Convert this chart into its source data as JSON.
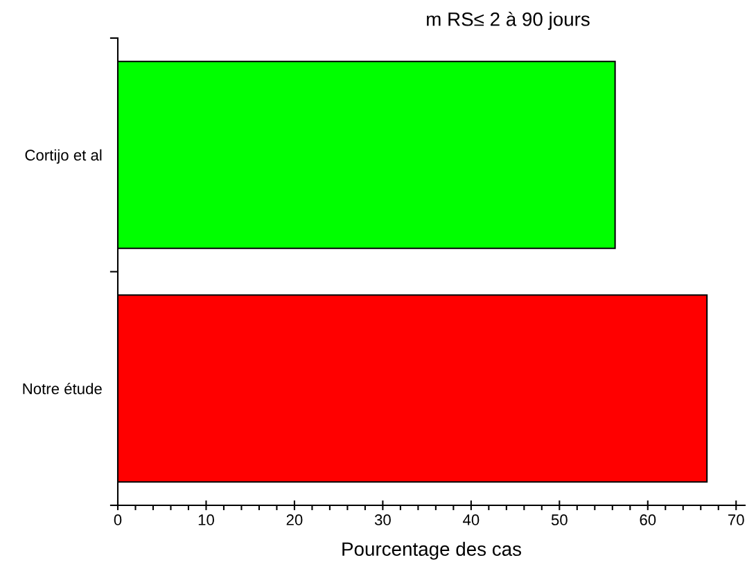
{
  "chart_data": {
    "type": "bar",
    "orientation": "horizontal",
    "title": "m RS≤ 2 à 90 jours",
    "xlabel": "Pourcentage des cas",
    "categories": [
      "Cortijo et al",
      "Notre étude"
    ],
    "values": [
      56.3,
      66.7
    ],
    "colors": [
      "#00ff00",
      "#ff0000"
    ],
    "xlim": [
      0,
      71
    ],
    "xticks": [
      0,
      10,
      20,
      30,
      40,
      50,
      60,
      70
    ],
    "grid": false,
    "legend": false
  }
}
